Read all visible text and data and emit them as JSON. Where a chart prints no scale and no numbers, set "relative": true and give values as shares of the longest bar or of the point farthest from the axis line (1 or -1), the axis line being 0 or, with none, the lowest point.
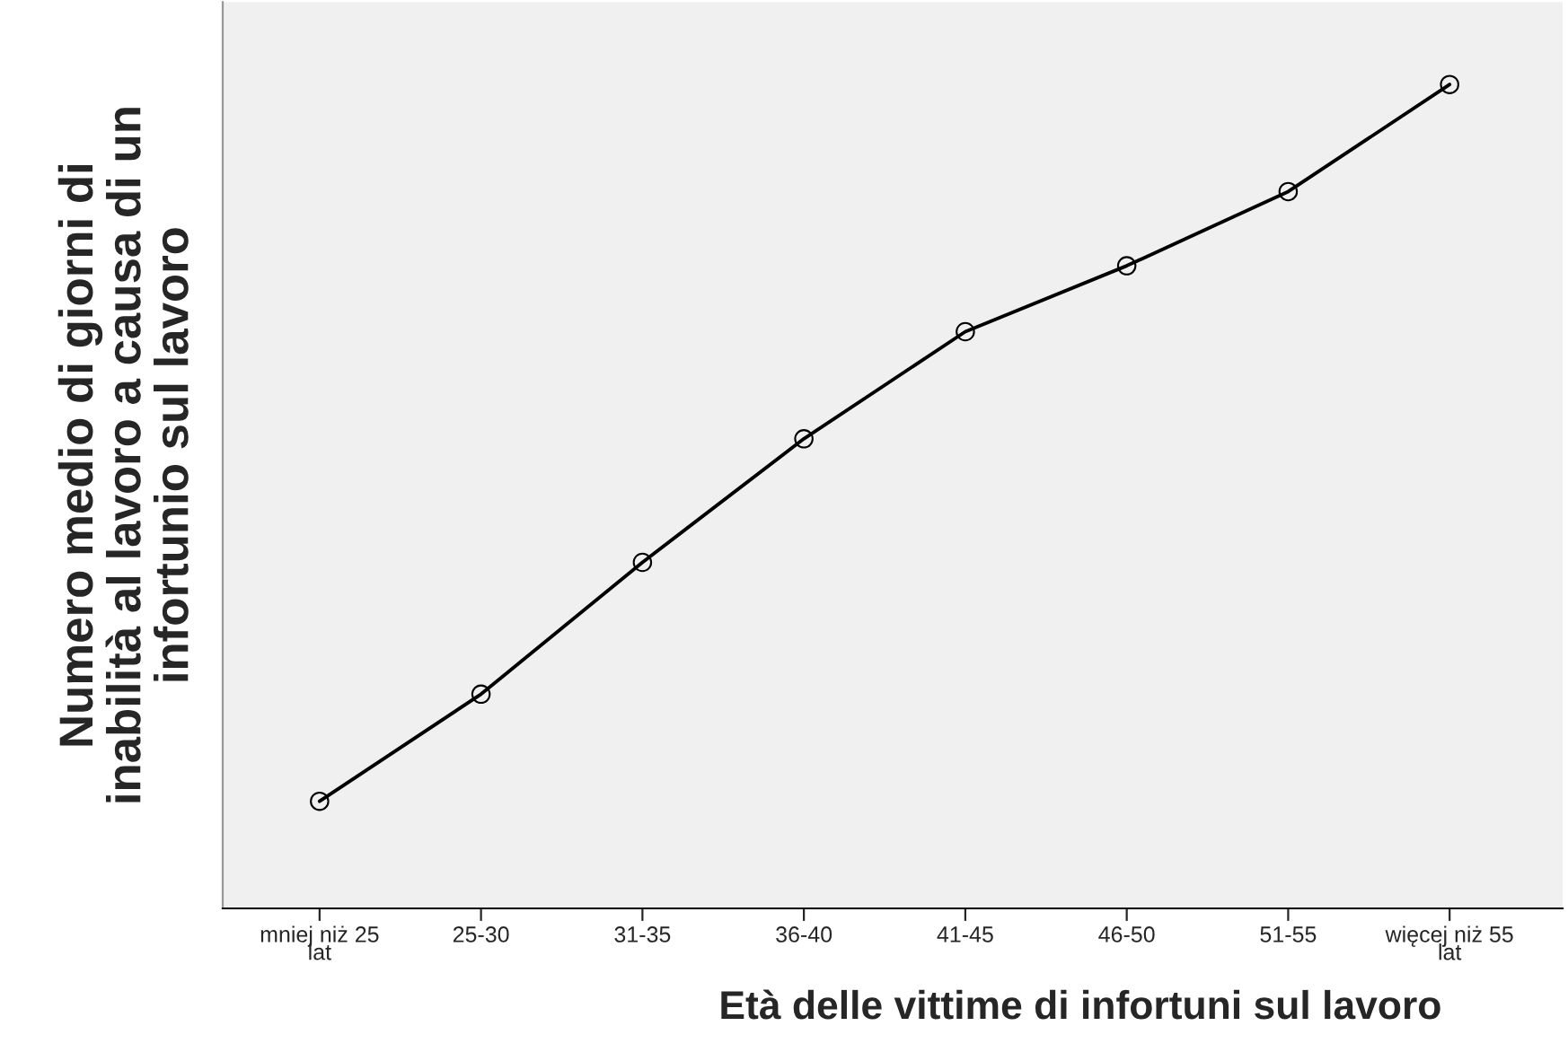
{
  "chart_data": {
    "type": "line",
    "relative": true,
    "xlabel": "Età delle vittime di infortuni sul lavoro",
    "ylabel": "Numero medio di giorni di\ninabilità al lavoro a causa di un\ninfortunio sul lavoro",
    "categories": [
      "mniej niż 25\nlat",
      "25-30",
      "31-35",
      "36-40",
      "41-45",
      "46-50",
      "51-55",
      "więcej niż 55\nlat"
    ],
    "series": [
      {
        "color": "#000000",
        "values": [
          0.13,
          0.26,
          0.42,
          0.57,
          0.7,
          0.78,
          0.87,
          1.0
        ]
      }
    ],
    "marker": "circle",
    "line_style": "solid",
    "grid": false,
    "legend": false
  }
}
